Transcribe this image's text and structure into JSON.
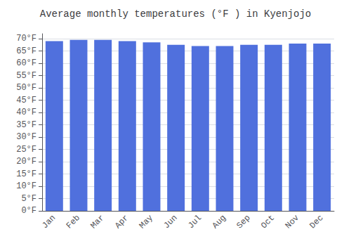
{
  "chart_data": {
    "type": "bar",
    "title": "Average monthly temperatures (°F ) in Kyenjojo",
    "categories": [
      "Jan",
      "Feb",
      "Mar",
      "Apr",
      "May",
      "Jun",
      "Jul",
      "Aug",
      "Sep",
      "Oct",
      "Nov",
      "Dec"
    ],
    "values": [
      69.0,
      69.5,
      69.5,
      69.0,
      68.5,
      67.5,
      67.0,
      67.0,
      67.5,
      67.5,
      68.0,
      68.0
    ],
    "ylim": [
      0,
      72
    ],
    "yticks": [
      {
        "value": 0,
        "label": "0°F"
      },
      {
        "value": 5,
        "label": "5°F"
      },
      {
        "value": 10,
        "label": "10°F"
      },
      {
        "value": 15,
        "label": "15°F"
      },
      {
        "value": 20,
        "label": "20°F"
      },
      {
        "value": 25,
        "label": "25°F"
      },
      {
        "value": 30,
        "label": "30°F"
      },
      {
        "value": 35,
        "label": "35°F"
      },
      {
        "value": 40,
        "label": "40°F"
      },
      {
        "value": 45,
        "label": "45°F"
      },
      {
        "value": 50,
        "label": "50°F"
      },
      {
        "value": 55,
        "label": "55°F"
      },
      {
        "value": 60,
        "label": "60°F"
      },
      {
        "value": 65,
        "label": "65°F"
      },
      {
        "value": 70,
        "label": "70°F"
      }
    ],
    "grid": true
  }
}
